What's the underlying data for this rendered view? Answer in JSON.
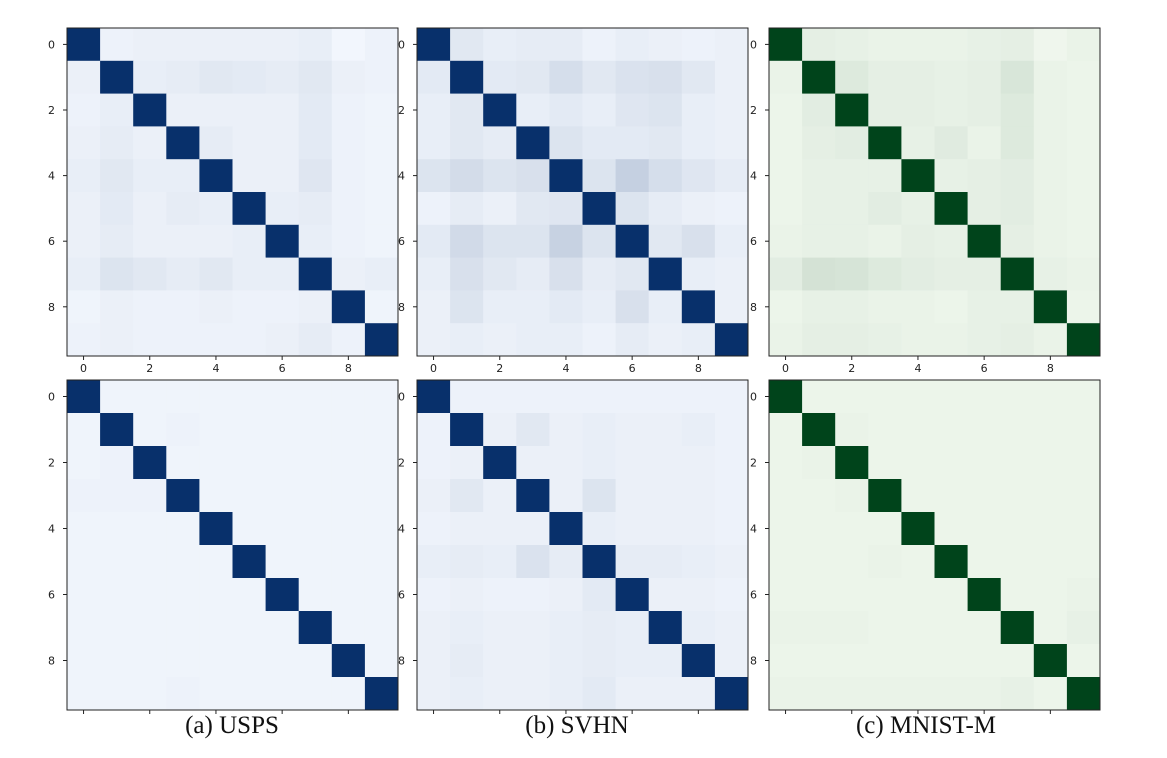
{
  "captions": {
    "usps": "(a) USPS",
    "svhn": "(b) SVHN",
    "mnistm": "(c) MNIST-M"
  },
  "chart_data": [
    {
      "type": "heatmap",
      "dataset": "USPS",
      "row": "top",
      "colormap": "blues",
      "x_ticks": [
        "0",
        "2",
        "4",
        "6",
        "8"
      ],
      "y_ticks": [
        "0",
        "2",
        "4",
        "6",
        "8"
      ],
      "show_x_tick_labels": true,
      "grid": false,
      "matrix": [
        [
          1.0,
          0.03,
          0.04,
          0.04,
          0.04,
          0.04,
          0.04,
          0.05,
          0.01,
          0.03
        ],
        [
          0.04,
          1.0,
          0.05,
          0.06,
          0.08,
          0.07,
          0.06,
          0.08,
          0.04,
          0.03
        ],
        [
          0.03,
          0.05,
          1.0,
          0.04,
          0.04,
          0.04,
          0.04,
          0.07,
          0.03,
          0.02
        ],
        [
          0.04,
          0.06,
          0.04,
          1.0,
          0.06,
          0.04,
          0.04,
          0.07,
          0.03,
          0.02
        ],
        [
          0.05,
          0.08,
          0.05,
          0.05,
          1.0,
          0.04,
          0.04,
          0.09,
          0.03,
          0.02
        ],
        [
          0.04,
          0.07,
          0.04,
          0.06,
          0.05,
          1.0,
          0.05,
          0.06,
          0.03,
          0.02
        ],
        [
          0.04,
          0.06,
          0.04,
          0.04,
          0.04,
          0.05,
          1.0,
          0.05,
          0.03,
          0.02
        ],
        [
          0.05,
          0.1,
          0.08,
          0.06,
          0.08,
          0.05,
          0.05,
          1.0,
          0.04,
          0.05
        ],
        [
          0.02,
          0.04,
          0.03,
          0.03,
          0.04,
          0.03,
          0.03,
          0.04,
          1.0,
          0.02
        ],
        [
          0.03,
          0.04,
          0.03,
          0.03,
          0.03,
          0.03,
          0.04,
          0.06,
          0.03,
          1.0
        ]
      ]
    },
    {
      "type": "heatmap",
      "dataset": "SVHN",
      "row": "top",
      "colormap": "blues",
      "x_ticks": [
        "0",
        "2",
        "4",
        "6",
        "8"
      ],
      "y_ticks": [
        "0",
        "2",
        "4",
        "6",
        "8"
      ],
      "show_x_tick_labels": true,
      "grid": false,
      "matrix": [
        [
          1.0,
          0.08,
          0.05,
          0.06,
          0.06,
          0.03,
          0.05,
          0.04,
          0.03,
          0.04
        ],
        [
          0.07,
          1.0,
          0.07,
          0.08,
          0.13,
          0.08,
          0.11,
          0.12,
          0.08,
          0.04
        ],
        [
          0.05,
          0.08,
          1.0,
          0.05,
          0.07,
          0.05,
          0.09,
          0.1,
          0.05,
          0.04
        ],
        [
          0.05,
          0.08,
          0.06,
          1.0,
          0.1,
          0.07,
          0.07,
          0.08,
          0.05,
          0.04
        ],
        [
          0.1,
          0.14,
          0.1,
          0.12,
          1.0,
          0.1,
          0.2,
          0.13,
          0.09,
          0.06
        ],
        [
          0.03,
          0.06,
          0.04,
          0.08,
          0.09,
          1.0,
          0.1,
          0.06,
          0.04,
          0.03
        ],
        [
          0.07,
          0.15,
          0.1,
          0.1,
          0.19,
          0.1,
          1.0,
          0.08,
          0.12,
          0.05
        ],
        [
          0.05,
          0.12,
          0.08,
          0.06,
          0.12,
          0.06,
          0.08,
          1.0,
          0.05,
          0.04
        ],
        [
          0.04,
          0.1,
          0.05,
          0.05,
          0.07,
          0.05,
          0.12,
          0.05,
          1.0,
          0.04
        ],
        [
          0.04,
          0.05,
          0.04,
          0.05,
          0.05,
          0.03,
          0.06,
          0.04,
          0.05,
          1.0
        ]
      ]
    },
    {
      "type": "heatmap",
      "dataset": "MNIST-M",
      "row": "top",
      "colormap": "greens",
      "x_ticks": [
        "0",
        "2",
        "4",
        "6",
        "8"
      ],
      "y_ticks": [
        "0",
        "2",
        "4",
        "6",
        "8"
      ],
      "show_x_tick_labels": true,
      "grid": false,
      "matrix": [
        [
          1.0,
          0.07,
          0.06,
          0.05,
          0.05,
          0.05,
          0.06,
          0.07,
          0.03,
          0.05
        ],
        [
          0.05,
          1.0,
          0.1,
          0.07,
          0.07,
          0.06,
          0.07,
          0.12,
          0.05,
          0.04
        ],
        [
          0.04,
          0.08,
          1.0,
          0.07,
          0.07,
          0.06,
          0.07,
          0.1,
          0.05,
          0.04
        ],
        [
          0.04,
          0.07,
          0.08,
          1.0,
          0.06,
          0.09,
          0.05,
          0.1,
          0.05,
          0.04
        ],
        [
          0.04,
          0.06,
          0.06,
          0.06,
          1.0,
          0.06,
          0.07,
          0.08,
          0.05,
          0.04
        ],
        [
          0.04,
          0.06,
          0.06,
          0.08,
          0.06,
          1.0,
          0.07,
          0.08,
          0.05,
          0.04
        ],
        [
          0.05,
          0.06,
          0.06,
          0.05,
          0.07,
          0.06,
          1.0,
          0.07,
          0.05,
          0.04
        ],
        [
          0.08,
          0.14,
          0.13,
          0.1,
          0.08,
          0.07,
          0.07,
          1.0,
          0.06,
          0.05
        ],
        [
          0.04,
          0.06,
          0.06,
          0.05,
          0.05,
          0.04,
          0.06,
          0.06,
          1.0,
          0.04
        ],
        [
          0.05,
          0.07,
          0.07,
          0.06,
          0.05,
          0.05,
          0.06,
          0.07,
          0.05,
          1.0
        ]
      ]
    },
    {
      "type": "heatmap",
      "dataset": "USPS",
      "row": "bottom",
      "colormap": "blues",
      "x_ticks": [],
      "y_ticks": [
        "0",
        "2",
        "4",
        "6",
        "8"
      ],
      "show_x_tick_labels": false,
      "grid": false,
      "matrix": [
        [
          1.0,
          0.02,
          0.02,
          0.02,
          0.02,
          0.02,
          0.02,
          0.02,
          0.02,
          0.02
        ],
        [
          0.02,
          1.0,
          0.02,
          0.03,
          0.02,
          0.02,
          0.02,
          0.02,
          0.02,
          0.02
        ],
        [
          0.02,
          0.03,
          1.0,
          0.02,
          0.02,
          0.02,
          0.02,
          0.02,
          0.02,
          0.02
        ],
        [
          0.03,
          0.03,
          0.03,
          1.0,
          0.02,
          0.02,
          0.02,
          0.02,
          0.02,
          0.02
        ],
        [
          0.02,
          0.02,
          0.02,
          0.02,
          1.0,
          0.02,
          0.02,
          0.02,
          0.02,
          0.02
        ],
        [
          0.02,
          0.02,
          0.02,
          0.02,
          0.02,
          1.0,
          0.02,
          0.02,
          0.02,
          0.02
        ],
        [
          0.02,
          0.02,
          0.02,
          0.02,
          0.02,
          0.02,
          1.0,
          0.02,
          0.02,
          0.02
        ],
        [
          0.02,
          0.02,
          0.02,
          0.02,
          0.02,
          0.02,
          0.02,
          1.0,
          0.02,
          0.02
        ],
        [
          0.02,
          0.02,
          0.02,
          0.02,
          0.02,
          0.02,
          0.02,
          0.02,
          1.0,
          0.02
        ],
        [
          0.02,
          0.02,
          0.02,
          0.03,
          0.02,
          0.02,
          0.02,
          0.02,
          0.02,
          1.0
        ]
      ]
    },
    {
      "type": "heatmap",
      "dataset": "SVHN",
      "row": "bottom",
      "colormap": "blues",
      "x_ticks": [],
      "y_ticks": [
        "0",
        "2",
        "4",
        "6",
        "8"
      ],
      "show_x_tick_labels": false,
      "grid": false,
      "matrix": [
        [
          1.0,
          0.03,
          0.03,
          0.03,
          0.03,
          0.03,
          0.03,
          0.03,
          0.03,
          0.03
        ],
        [
          0.03,
          1.0,
          0.04,
          0.08,
          0.04,
          0.05,
          0.04,
          0.04,
          0.05,
          0.03
        ],
        [
          0.03,
          0.04,
          1.0,
          0.04,
          0.04,
          0.05,
          0.04,
          0.04,
          0.04,
          0.03
        ],
        [
          0.04,
          0.08,
          0.04,
          1.0,
          0.04,
          0.1,
          0.04,
          0.04,
          0.04,
          0.03
        ],
        [
          0.03,
          0.04,
          0.04,
          0.04,
          1.0,
          0.05,
          0.04,
          0.04,
          0.04,
          0.03
        ],
        [
          0.05,
          0.06,
          0.05,
          0.11,
          0.06,
          1.0,
          0.06,
          0.06,
          0.05,
          0.04
        ],
        [
          0.03,
          0.04,
          0.03,
          0.03,
          0.04,
          0.07,
          1.0,
          0.04,
          0.04,
          0.03
        ],
        [
          0.04,
          0.05,
          0.04,
          0.04,
          0.05,
          0.06,
          0.05,
          1.0,
          0.05,
          0.04
        ],
        [
          0.04,
          0.06,
          0.04,
          0.04,
          0.05,
          0.06,
          0.05,
          0.05,
          1.0,
          0.04
        ],
        [
          0.04,
          0.05,
          0.04,
          0.04,
          0.05,
          0.07,
          0.04,
          0.04,
          0.04,
          1.0
        ]
      ]
    },
    {
      "type": "heatmap",
      "dataset": "MNIST-M",
      "row": "bottom",
      "colormap": "greens",
      "x_ticks": [],
      "y_ticks": [
        "0",
        "2",
        "4",
        "6",
        "8"
      ],
      "show_x_tick_labels": false,
      "grid": false,
      "matrix": [
        [
          1.0,
          0.04,
          0.04,
          0.04,
          0.04,
          0.04,
          0.04,
          0.04,
          0.04,
          0.04
        ],
        [
          0.04,
          1.0,
          0.05,
          0.04,
          0.04,
          0.04,
          0.04,
          0.04,
          0.04,
          0.04
        ],
        [
          0.04,
          0.05,
          1.0,
          0.04,
          0.04,
          0.04,
          0.04,
          0.04,
          0.04,
          0.04
        ],
        [
          0.04,
          0.04,
          0.05,
          1.0,
          0.04,
          0.04,
          0.04,
          0.04,
          0.04,
          0.04
        ],
        [
          0.04,
          0.04,
          0.04,
          0.04,
          1.0,
          0.04,
          0.04,
          0.04,
          0.04,
          0.04
        ],
        [
          0.04,
          0.04,
          0.04,
          0.05,
          0.04,
          1.0,
          0.04,
          0.04,
          0.04,
          0.04
        ],
        [
          0.04,
          0.04,
          0.04,
          0.04,
          0.04,
          0.04,
          1.0,
          0.04,
          0.04,
          0.05
        ],
        [
          0.05,
          0.05,
          0.05,
          0.04,
          0.04,
          0.04,
          0.04,
          1.0,
          0.04,
          0.06
        ],
        [
          0.04,
          0.04,
          0.04,
          0.04,
          0.04,
          0.04,
          0.04,
          0.04,
          1.0,
          0.04
        ],
        [
          0.05,
          0.05,
          0.05,
          0.05,
          0.05,
          0.05,
          0.05,
          0.06,
          0.04,
          1.0
        ]
      ]
    }
  ]
}
